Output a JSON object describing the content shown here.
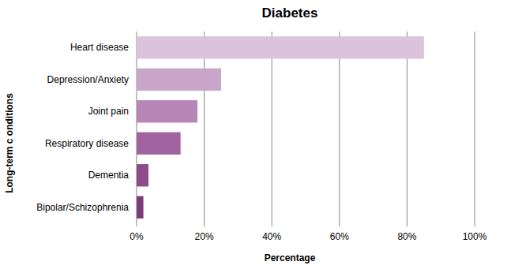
{
  "chart_data": {
    "type": "bar",
    "title": "Diabetes",
    "orientation": "horizontal",
    "categories": [
      "Heart disease",
      "Depression/Anxiety",
      "Joint pain",
      "Respiratory disease",
      "Dementia",
      "Bipolar/Schizophrenia"
    ],
    "values": [
      85,
      25,
      18,
      13,
      3.5,
      2
    ],
    "colors": [
      "#dbc3db",
      "#c9a6c9",
      "#b886b6",
      "#a1639f",
      "#8d4c8c",
      "#7b3c7a"
    ],
    "xlim": [
      0,
      100
    ],
    "xticks": [
      {
        "value": 0,
        "label": "0%"
      },
      {
        "value": 20,
        "label": "20%"
      },
      {
        "value": 40,
        "label": "40%"
      },
      {
        "value": 60,
        "label": "60%"
      },
      {
        "value": 80,
        "label": "80%"
      },
      {
        "value": 100,
        "label": "100%"
      }
    ],
    "xlabel": "Percentage",
    "ylabel": "Long-term c onditions",
    "grid": true
  }
}
